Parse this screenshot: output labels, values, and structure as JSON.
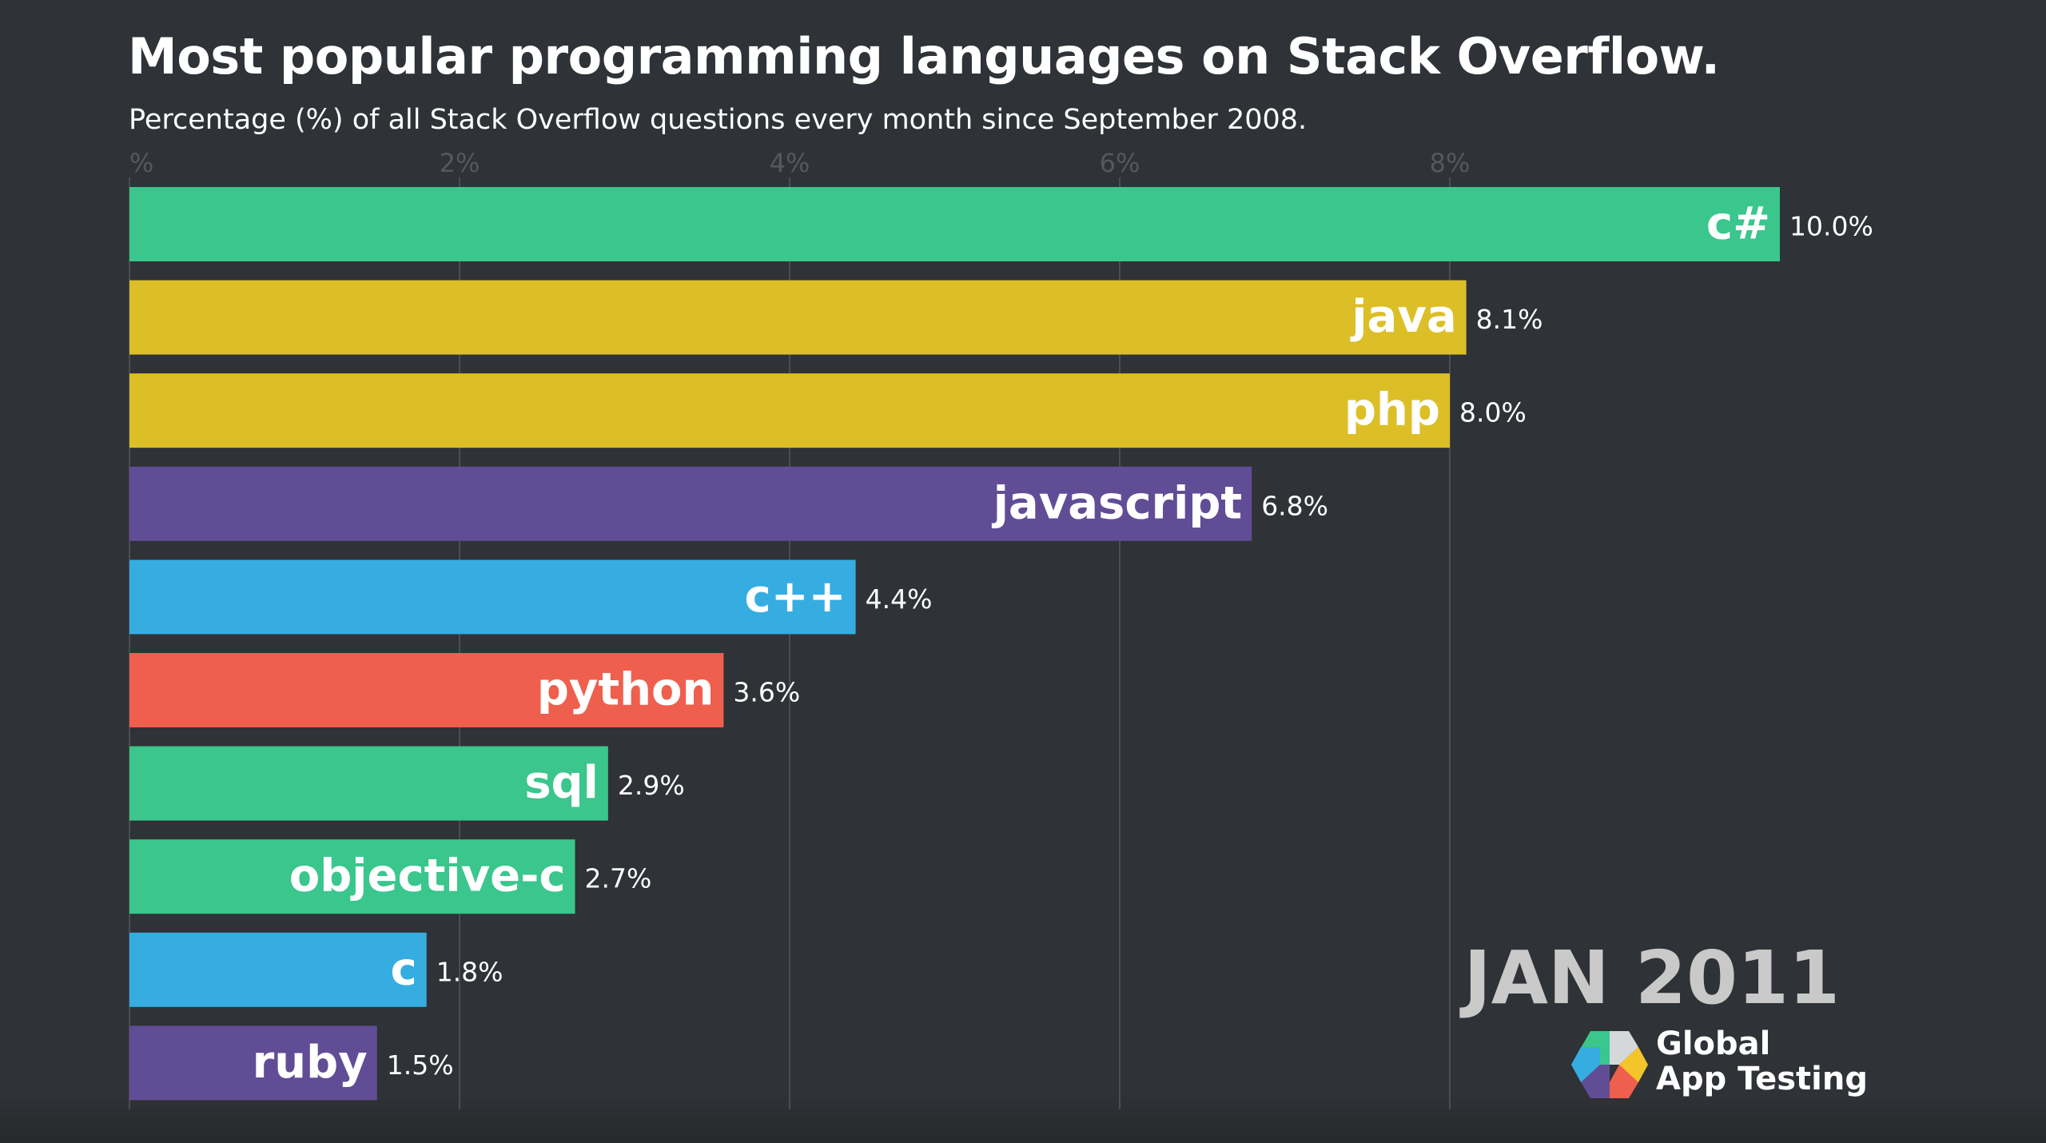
{
  "chart_data": {
    "type": "bar",
    "orientation": "horizontal",
    "title": "Most popular programming languages on Stack Overflow.",
    "subtitle": "Percentage (%) of all Stack Overflow questions every month since September 2008.",
    "xlabel": "",
    "ylabel": "",
    "xlim": [
      0,
      10.5
    ],
    "x_ticks": [
      0,
      2,
      4,
      6,
      8
    ],
    "x_tick_labels": [
      "%",
      "2%",
      "4%",
      "6%",
      "8%"
    ],
    "grid": true,
    "legend": "none",
    "categories": [
      "c#",
      "java",
      "php",
      "javascript",
      "c++",
      "python",
      "sql",
      "objective-c",
      "c",
      "ruby"
    ],
    "values": [
      10.0,
      8.1,
      8.0,
      6.8,
      4.4,
      3.6,
      2.9,
      2.7,
      1.8,
      1.5
    ],
    "value_labels": [
      "10.0%",
      "8.1%",
      "8.0%",
      "6.8%",
      "4.4%",
      "3.6%",
      "2.9%",
      "2.7%",
      "1.8%",
      "1.5%"
    ],
    "colors": [
      "#3ac68c",
      "#dcbf27",
      "#dcbf27",
      "#614d96",
      "#36ade1",
      "#ef5f4e",
      "#3ac68c",
      "#3ac68c",
      "#36ade1",
      "#614d96"
    ],
    "annotation": "JAN 2011"
  },
  "branding": {
    "logo_line1": "Global",
    "logo_line2": "App Testing",
    "logo_colors": [
      "#3ac68c",
      "#36ade1",
      "#614d96",
      "#ef5f4e",
      "#f4c52a",
      "#d5d8db"
    ]
  }
}
